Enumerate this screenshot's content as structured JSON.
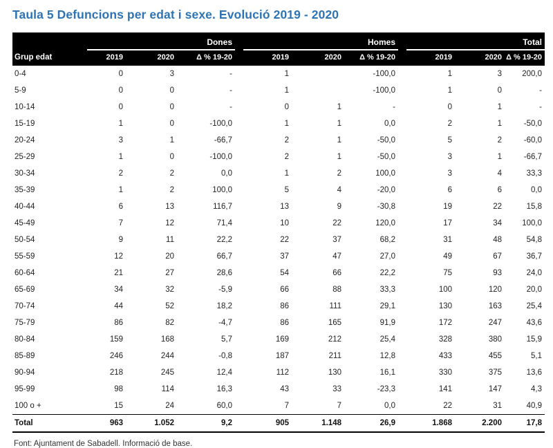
{
  "title": "Taula 5 Defuncions per edat i sexe. Evolució 2019 - 2020",
  "footer": "Font: Ajuntament de Sabadell. Informació de base.",
  "colors": {
    "title_blue": "#2E74B5",
    "header_bg": "#000000",
    "header_fg": "#FFFFFF",
    "body_text": "#222222"
  },
  "table": {
    "corner_label": "Grup edat",
    "groups": [
      {
        "label": "Dones"
      },
      {
        "label": "Homes"
      },
      {
        "label": "Total"
      }
    ],
    "sub_headers": [
      "2019",
      "2020",
      "Δ % 19-20"
    ],
    "rows": [
      {
        "label": "0-4",
        "cells": [
          "0",
          "3",
          "-",
          "1",
          "",
          "-100,0",
          "1",
          "3",
          "200,0"
        ]
      },
      {
        "label": "5-9",
        "cells": [
          "0",
          "0",
          "-",
          "1",
          "",
          "-100,0",
          "1",
          "0",
          "-"
        ]
      },
      {
        "label": "10-14",
        "cells": [
          "0",
          "0",
          "-",
          "0",
          "1",
          "-",
          "0",
          "1",
          "-"
        ]
      },
      {
        "label": "15-19",
        "cells": [
          "1",
          "0",
          "-100,0",
          "1",
          "1",
          "0,0",
          "2",
          "1",
          "-50,0"
        ]
      },
      {
        "label": "20-24",
        "cells": [
          "3",
          "1",
          "-66,7",
          "2",
          "1",
          "-50,0",
          "5",
          "2",
          "-60,0"
        ]
      },
      {
        "label": "25-29",
        "cells": [
          "1",
          "0",
          "-100,0",
          "2",
          "1",
          "-50,0",
          "3",
          "1",
          "-66,7"
        ]
      },
      {
        "label": "30-34",
        "cells": [
          "2",
          "2",
          "0,0",
          "1",
          "2",
          "100,0",
          "3",
          "4",
          "33,3"
        ]
      },
      {
        "label": "35-39",
        "cells": [
          "1",
          "2",
          "100,0",
          "5",
          "4",
          "-20,0",
          "6",
          "6",
          "0,0"
        ]
      },
      {
        "label": "40-44",
        "cells": [
          "6",
          "13",
          "116,7",
          "13",
          "9",
          "-30,8",
          "19",
          "22",
          "15,8"
        ]
      },
      {
        "label": "45-49",
        "cells": [
          "7",
          "12",
          "71,4",
          "10",
          "22",
          "120,0",
          "17",
          "34",
          "100,0"
        ]
      },
      {
        "label": "50-54",
        "cells": [
          "9",
          "11",
          "22,2",
          "22",
          "37",
          "68,2",
          "31",
          "48",
          "54,8"
        ]
      },
      {
        "label": "55-59",
        "cells": [
          "12",
          "20",
          "66,7",
          "37",
          "47",
          "27,0",
          "49",
          "67",
          "36,7"
        ]
      },
      {
        "label": "60-64",
        "cells": [
          "21",
          "27",
          "28,6",
          "54",
          "66",
          "22,2",
          "75",
          "93",
          "24,0"
        ]
      },
      {
        "label": "65-69",
        "cells": [
          "34",
          "32",
          "-5,9",
          "66",
          "88",
          "33,3",
          "100",
          "120",
          "20,0"
        ]
      },
      {
        "label": "70-74",
        "cells": [
          "44",
          "52",
          "18,2",
          "86",
          "111",
          "29,1",
          "130",
          "163",
          "25,4"
        ]
      },
      {
        "label": "75-79",
        "cells": [
          "86",
          "82",
          "-4,7",
          "86",
          "165",
          "91,9",
          "172",
          "247",
          "43,6"
        ]
      },
      {
        "label": "80-84",
        "cells": [
          "159",
          "168",
          "5,7",
          "169",
          "212",
          "25,4",
          "328",
          "380",
          "15,9"
        ]
      },
      {
        "label": "85-89",
        "cells": [
          "246",
          "244",
          "-0,8",
          "187",
          "211",
          "12,8",
          "433",
          "455",
          "5,1"
        ]
      },
      {
        "label": "90-94",
        "cells": [
          "218",
          "245",
          "12,4",
          "112",
          "130",
          "16,1",
          "330",
          "375",
          "13,6"
        ]
      },
      {
        "label": "95-99",
        "cells": [
          "98",
          "114",
          "16,3",
          "43",
          "33",
          "-23,3",
          "141",
          "147",
          "4,3"
        ]
      },
      {
        "label": "100 o +",
        "cells": [
          "15",
          "24",
          "60,0",
          "7",
          "7",
          "0,0",
          "22",
          "31",
          "40,9"
        ]
      }
    ],
    "total_row": {
      "label": "Total",
      "cells": [
        "963",
        "1.052",
        "9,2",
        "905",
        "1.148",
        "26,9",
        "1.868",
        "2.200",
        "17,8"
      ]
    }
  }
}
